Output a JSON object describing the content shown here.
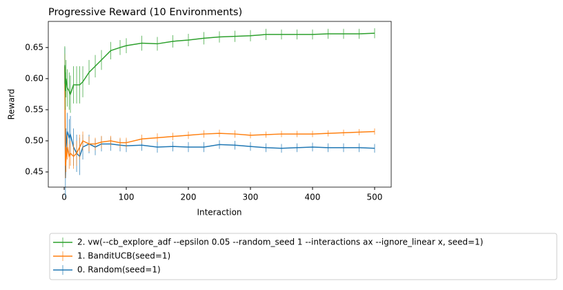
{
  "chart_data": {
    "type": "line",
    "title": "Progressive Reward (10 Environments)",
    "x_label": "Interaction",
    "y_label": "Reward",
    "x": [
      1,
      2,
      3,
      5,
      8,
      10,
      15,
      20,
      25,
      30,
      40,
      50,
      60,
      75,
      90,
      100,
      125,
      150,
      175,
      200,
      225,
      250,
      275,
      300,
      325,
      350,
      375,
      400,
      425,
      450,
      475,
      500
    ],
    "series": [
      {
        "name": "2. vw(--cb_explore_adf --epsilon 0.05 --random_seed 1  --interactions ax --ignore_linear x, seed=1)",
        "color": "#2ca02c",
        "values": [
          0.622,
          0.58,
          0.6,
          0.585,
          0.58,
          0.575,
          0.59,
          0.59,
          0.59,
          0.595,
          0.61,
          0.62,
          0.63,
          0.645,
          0.65,
          0.653,
          0.657,
          0.656,
          0.66,
          0.662,
          0.665,
          0.667,
          0.668,
          0.669,
          0.671,
          0.671,
          0.671,
          0.671,
          0.672,
          0.672,
          0.672,
          0.673
        ],
        "errors": [
          0.03,
          0.03,
          0.03,
          0.03,
          0.03,
          0.03,
          0.03,
          0.03,
          0.03,
          0.025,
          0.02,
          0.018,
          0.016,
          0.014,
          0.012,
          0.012,
          0.012,
          0.011,
          0.01,
          0.01,
          0.01,
          0.009,
          0.009,
          0.009,
          0.009,
          0.008,
          0.008,
          0.008,
          0.008,
          0.008,
          0.008,
          0.008
        ]
      },
      {
        "name": "1. BanditUCB(seed=1)",
        "color": "#ff7f0e",
        "values": [
          0.62,
          0.46,
          0.47,
          0.49,
          0.475,
          0.48,
          0.475,
          0.48,
          0.49,
          0.5,
          0.495,
          0.495,
          0.498,
          0.5,
          0.497,
          0.497,
          0.503,
          0.505,
          0.507,
          0.509,
          0.511,
          0.512,
          0.511,
          0.509,
          0.51,
          0.511,
          0.511,
          0.511,
          0.512,
          0.513,
          0.514,
          0.515
        ],
        "errors": [
          0.02,
          0.02,
          0.02,
          0.02,
          0.02,
          0.02,
          0.02,
          0.02,
          0.02,
          0.015,
          0.012,
          0.01,
          0.01,
          0.008,
          0.008,
          0.008,
          0.007,
          0.007,
          0.006,
          0.006,
          0.006,
          0.006,
          0.006,
          0.005,
          0.005,
          0.005,
          0.005,
          0.005,
          0.005,
          0.005,
          0.005,
          0.005
        ]
      },
      {
        "name": "0. Random(seed=1)",
        "color": "#1f77b4",
        "values": [
          0.62,
          0.44,
          0.49,
          0.515,
          0.505,
          0.51,
          0.49,
          0.48,
          0.475,
          0.49,
          0.495,
          0.49,
          0.495,
          0.495,
          0.493,
          0.492,
          0.493,
          0.49,
          0.491,
          0.49,
          0.49,
          0.494,
          0.493,
          0.491,
          0.489,
          0.488,
          0.489,
          0.49,
          0.489,
          0.489,
          0.489,
          0.488
        ],
        "errors": [
          0.03,
          0.03,
          0.03,
          0.03,
          0.03,
          0.03,
          0.03,
          0.03,
          0.03,
          0.02,
          0.015,
          0.013,
          0.012,
          0.011,
          0.01,
          0.01,
          0.009,
          0.009,
          0.008,
          0.008,
          0.008,
          0.007,
          0.007,
          0.007,
          0.007,
          0.007,
          0.007,
          0.007,
          0.007,
          0.007,
          0.007,
          0.007
        ]
      }
    ],
    "xlim": [
      -25.6,
      526.7
    ],
    "ylim": [
      0.4256,
      0.692
    ],
    "xticks": [
      0,
      100,
      200,
      300,
      400,
      500
    ],
    "yticks": [
      0.45,
      {
        "value": 0.5,
        "label": "0.50"
      },
      0.55,
      {
        "value": 0.6,
        "label": "0.60"
      },
      0.65
    ],
    "legend": "below"
  }
}
